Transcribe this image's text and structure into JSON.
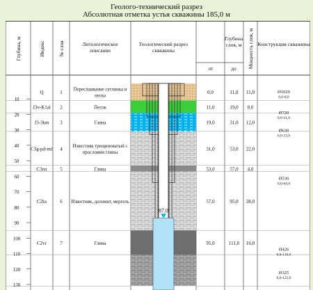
{
  "title": "Геолого-технический разрез",
  "subtitle": "Абсолютная отметка устья скважины 185,0 м",
  "headers": {
    "depth": "Глубина, м",
    "index": "Индекс",
    "layer_no": "№ слоя",
    "lithology": "Литологическое описание",
    "section": "Геологический разрез скважины",
    "layer_depth": "Глубина слоя, м",
    "from": "от",
    "to": "до",
    "thickness": "Мощность слоя, м",
    "construction": "Конструкция скважины"
  },
  "depth_ticks": [
    10,
    20,
    30,
    40,
    50,
    60,
    70,
    80,
    90,
    100,
    110,
    120,
    130
  ],
  "max_depth": 131,
  "layers": [
    {
      "index": "Q",
      "no": "1",
      "desc": [
        "Переслаивание суглинка и",
        "песка"
      ],
      "from": 0.0,
      "to": 11.0,
      "from_txt": "0,0",
      "to_txt": "11,0",
      "thick_txt": "11,0",
      "color": "#f6dcae"
    },
    {
      "index": "J3v-K1al",
      "no": "2",
      "desc": [
        "Песок"
      ],
      "from": 11.0,
      "to": 19.0,
      "from_txt": "11,0",
      "to_txt": "19,0",
      "thick_txt": "8,0",
      "color": "#3ccd3c"
    },
    {
      "index": "J3-3km",
      "no": "3",
      "desc": [
        "Глина"
      ],
      "from": 19.0,
      "to": 31.0,
      "from_txt": "19,0",
      "to_txt": "31,0",
      "thick_txt": "12,0",
      "color": "#00b2ef"
    },
    {
      "index": "C3g-pd-mč",
      "no": "4",
      "desc": [
        "Известняк трещиноватый с",
        "прослоями глины"
      ],
      "from": 31.0,
      "to": 53.0,
      "from_txt": "31,0",
      "to_txt": "53,0",
      "thick_txt": "22,0",
      "color": "#d0d0d0"
    },
    {
      "index": "C3rst",
      "no": "5",
      "desc": [
        "Глина"
      ],
      "from": 53.0,
      "to": 57.0,
      "from_txt": "53,0",
      "to_txt": "57,0",
      "thick_txt": "4,0",
      "color": "#8a8a8a"
    },
    {
      "index": "C2ks",
      "no": "6",
      "desc": [
        "Известняк, доломит, мергель"
      ],
      "from": 57.0,
      "to": 95.0,
      "from_txt": "57,0",
      "to_txt": "95,0",
      "thick_txt": "38,0",
      "color": "#a8a8a8"
    },
    {
      "index": "C2vr",
      "no": "7",
      "desc": [
        "Глина"
      ],
      "from": 95.0,
      "to": 111.0,
      "from_txt": "95,0",
      "to_txt": "111,0",
      "thick_txt": "16,0",
      "color": "#6e6e6e"
    },
    {
      "index": "",
      "no": "",
      "desc": [],
      "from": 111.0,
      "to": 131.0,
      "from_txt": "",
      "to_txt": "",
      "thick_txt": "",
      "color": "#9a9a9a"
    }
  ],
  "water_level": 87.0,
  "water_level_label": "87,0",
  "water_color": "#aee2f4",
  "casings": [
    {
      "d": "Ø1020",
      "range": "0,0-8,0",
      "depth": 8
    },
    {
      "d": "Ø720",
      "range": "0,0-21,6",
      "depth": 21.6
    },
    {
      "d": "Ø630",
      "range": "0,0-33,0",
      "depth": 33
    },
    {
      "d": "Ø530",
      "range": "0,0-64,0",
      "depth": 64
    },
    {
      "d": "Ø426",
      "range": "0,0-110,0",
      "depth": 110
    },
    {
      "d": "Ø325",
      "range": "0,0-125,0",
      "depth": 125
    }
  ]
}
